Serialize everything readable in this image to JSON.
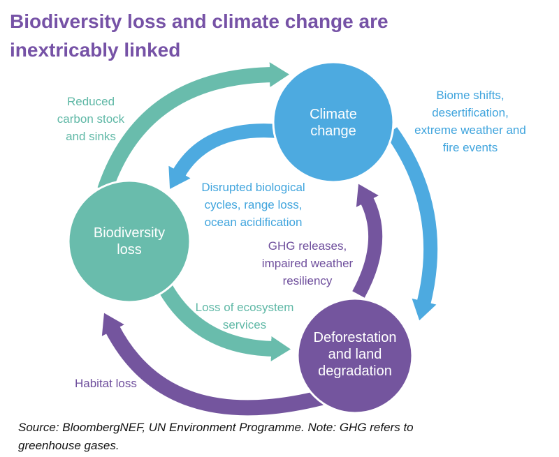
{
  "title": [
    "Biodiversity loss and climate change are",
    "inextricably linked"
  ],
  "nodes": {
    "climate": [
      "Climate",
      "change"
    ],
    "biodiversity": [
      "Biodiversity",
      "loss"
    ],
    "deforestation": [
      "Deforestation",
      "and land",
      "degradation"
    ]
  },
  "labels": {
    "reduced_carbon": [
      "Reduced",
      "carbon stock",
      "and sinks"
    ],
    "biome_shifts": [
      "Biome shifts,",
      "desertification,",
      "extreme weather and",
      "fire events"
    ],
    "disrupted": [
      "Disrupted biological",
      "cycles, range loss,",
      "ocean acidification"
    ],
    "ghg": [
      "GHG releases,",
      "impaired weather",
      "resiliency"
    ],
    "ecosystem": [
      "Loss of ecosystem",
      "services"
    ],
    "habitat": [
      "Habitat loss"
    ]
  },
  "source": [
    "Source: BloombergNEF, UN Environment Programme. Note: GHG refers to",
    "greenhouse gases."
  ],
  "colors": {
    "teal": "#69BCAC",
    "blue": "#4DAAE0",
    "purple": "#74559E",
    "title": "#7652A6"
  }
}
